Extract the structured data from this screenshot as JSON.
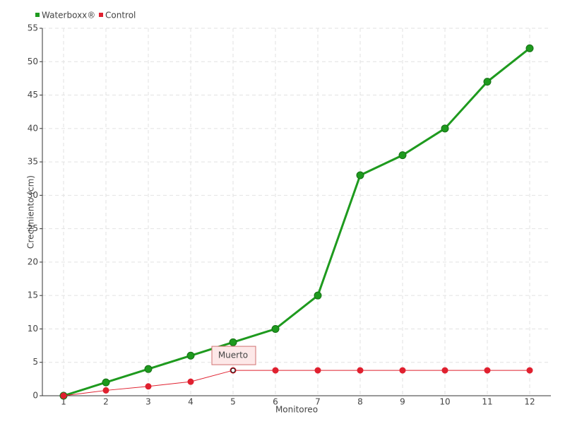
{
  "chart_data": {
    "type": "line",
    "x_label": "Monitoreo",
    "y_label": "Crecimiento (cm)",
    "categories": [
      "1",
      "2",
      "3",
      "4",
      "5",
      "6",
      "7",
      "8",
      "9",
      "10",
      "11",
      "12"
    ],
    "series": [
      {
        "name": "Waterboxx®",
        "color": "#1e9a1e",
        "values": [
          0,
          2,
          4,
          6,
          8,
          10,
          15,
          33,
          36,
          40,
          47,
          52
        ]
      },
      {
        "name": "Control",
        "color": "#e0202f",
        "values": [
          0,
          0.8,
          1.4,
          2.1,
          3.8,
          3.8,
          3.8,
          3.8,
          3.8,
          3.8,
          3.8,
          3.8
        ]
      }
    ],
    "annotation": "Muerto",
    "ylim": [
      0,
      55
    ],
    "yticks": [
      0,
      5,
      10,
      15,
      20,
      25,
      30,
      35,
      40,
      45,
      50,
      55
    ],
    "grid": true
  }
}
